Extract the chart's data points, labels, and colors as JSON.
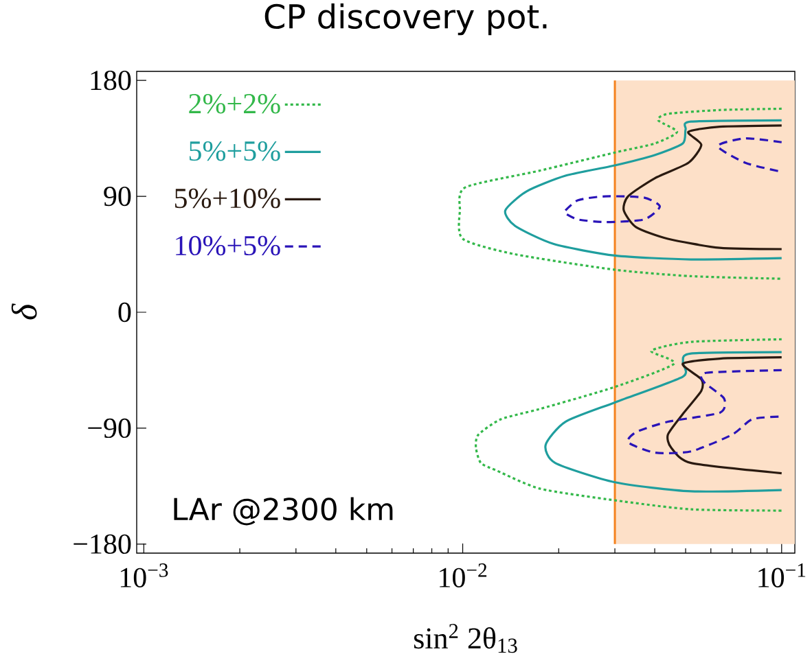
{
  "chart_data": {
    "type": "line",
    "title": "CP discovery pot.",
    "xlabel": "sin$^{2}$ 2θ$_{13}$",
    "ylabel": "δ",
    "log": "x",
    "xlim": [
      0.00095,
      0.11
    ],
    "ylim": [
      -187,
      187
    ],
    "xticks": [
      {
        "value": 0.001,
        "label": "10$^{−3}$"
      },
      {
        "value": 0.002,
        "label": null
      },
      {
        "value": 0.003,
        "label": null
      },
      {
        "value": 0.004,
        "label": null
      },
      {
        "value": 0.005,
        "label": null
      },
      {
        "value": 0.006,
        "label": null
      },
      {
        "value": 0.007,
        "label": null
      },
      {
        "value": 0.008,
        "label": null
      },
      {
        "value": 0.009,
        "label": null
      },
      {
        "value": 0.01,
        "label": "10$^{−2}$"
      },
      {
        "value": 0.02,
        "label": null
      },
      {
        "value": 0.03,
        "label": null
      },
      {
        "value": 0.04,
        "label": null
      },
      {
        "value": 0.05,
        "label": null
      },
      {
        "value": 0.06,
        "label": null
      },
      {
        "value": 0.07,
        "label": null
      },
      {
        "value": 0.08,
        "label": null
      },
      {
        "value": 0.09,
        "label": null
      },
      {
        "value": 0.1,
        "label": "10$^{−1}$"
      }
    ],
    "yticks": [
      {
        "value": -180,
        "label": "−180"
      },
      {
        "value": -90,
        "label": "−90"
      },
      0,
      90,
      180
    ],
    "legend": "top left",
    "bands": [
      {
        "axis": "x",
        "from": 0.03,
        "to": 0.11,
        "color": "#fde0c8"
      }
    ],
    "ref_lines": [
      {
        "axis": "x",
        "value": 0.03,
        "color": "#f5821f"
      }
    ],
    "annotations": [
      "LAr @2300 km"
    ],
    "series": [
      {
        "name": "2%+2%",
        "color": "#33b84a",
        "line_style": "dotted",
        "x": [
          0.1,
          0.064,
          0.044,
          0.041,
          0.047,
          0.04,
          0.03,
          0.0175,
          0.0102,
          0.0098,
          0.01,
          0.0146,
          0.03,
          0.052,
          0.1,
          null,
          0.1,
          0.052,
          0.039,
          0.046,
          0.03,
          0.0175,
          0.0132,
          0.0112,
          0.011,
          0.0114,
          0.0128,
          0.0175,
          0.03,
          0.052,
          0.1
        ],
        "values": [
          158,
          157,
          154,
          149,
          140,
          131,
          124,
          110,
          97,
          79,
          57,
          45,
          33,
          28,
          26,
          null,
          -21,
          -23,
          -30,
          -40,
          -58,
          -75,
          -83,
          -95,
          -105,
          -117,
          -123,
          -137,
          -146,
          -153,
          -154
        ]
      },
      {
        "name": "5%+5%",
        "color": "#1f9e9e",
        "line_style": "solid",
        "x": [
          0.1,
          0.052,
          0.05,
          0.049,
          0.04,
          0.03,
          0.021,
          0.0159,
          0.0136,
          0.0146,
          0.0193,
          0.03,
          0.052,
          0.1,
          null,
          0.1,
          0.052,
          0.049,
          0.049,
          0.03,
          0.021,
          0.0182,
          0.0195,
          0.03,
          0.052,
          0.1
        ],
        "values": [
          149,
          148,
          142,
          131,
          122,
          114,
          106,
          94,
          79,
          67,
          53,
          44,
          41,
          42,
          null,
          -31,
          -32,
          -39,
          -50,
          -70,
          -85,
          -103,
          -117,
          -132,
          -139,
          -138
        ]
      },
      {
        "name": "5%+10%",
        "color": "#2a1a10",
        "line_style": "solid",
        "x": [
          0.1,
          0.064,
          0.051,
          0.056,
          0.051,
          0.04,
          0.033,
          0.032,
          0.035,
          0.044,
          0.064,
          0.1,
          null,
          0.1,
          0.064,
          0.049,
          0.056,
          0.056,
          0.049,
          0.044,
          0.045,
          0.052,
          0.1
        ],
        "values": [
          145,
          144,
          140,
          130,
          116,
          104,
          90,
          79,
          66,
          57,
          50,
          49,
          null,
          -35,
          -36,
          -40,
          -52,
          -61,
          -79,
          -95,
          -105,
          -117,
          -125
        ]
      },
      {
        "name": "10%+5%",
        "color": "#2a14b8",
        "line_style": "dashed",
        "x": [
          0.1,
          0.077,
          0.063,
          0.077,
          0.1,
          null,
          0.021,
          0.023,
          0.028,
          0.037,
          0.0415,
          0.037,
          0.028,
          0.023,
          0.0212,
          null,
          0.1,
          0.058,
          0.057,
          0.066,
          0.064,
          0.044,
          0.035,
          0.033,
          0.04,
          0.052,
          0.07,
          0.081,
          0.1
        ],
        "values": [
          132,
          135,
          129,
          116,
          109,
          null,
          79,
          87,
          90,
          89,
          82,
          72,
          70,
          72,
          76,
          null,
          -45,
          -47,
          -54,
          -67,
          -78,
          -85,
          -93,
          -101,
          -109,
          -108,
          -95,
          -83,
          -81
        ]
      }
    ]
  }
}
